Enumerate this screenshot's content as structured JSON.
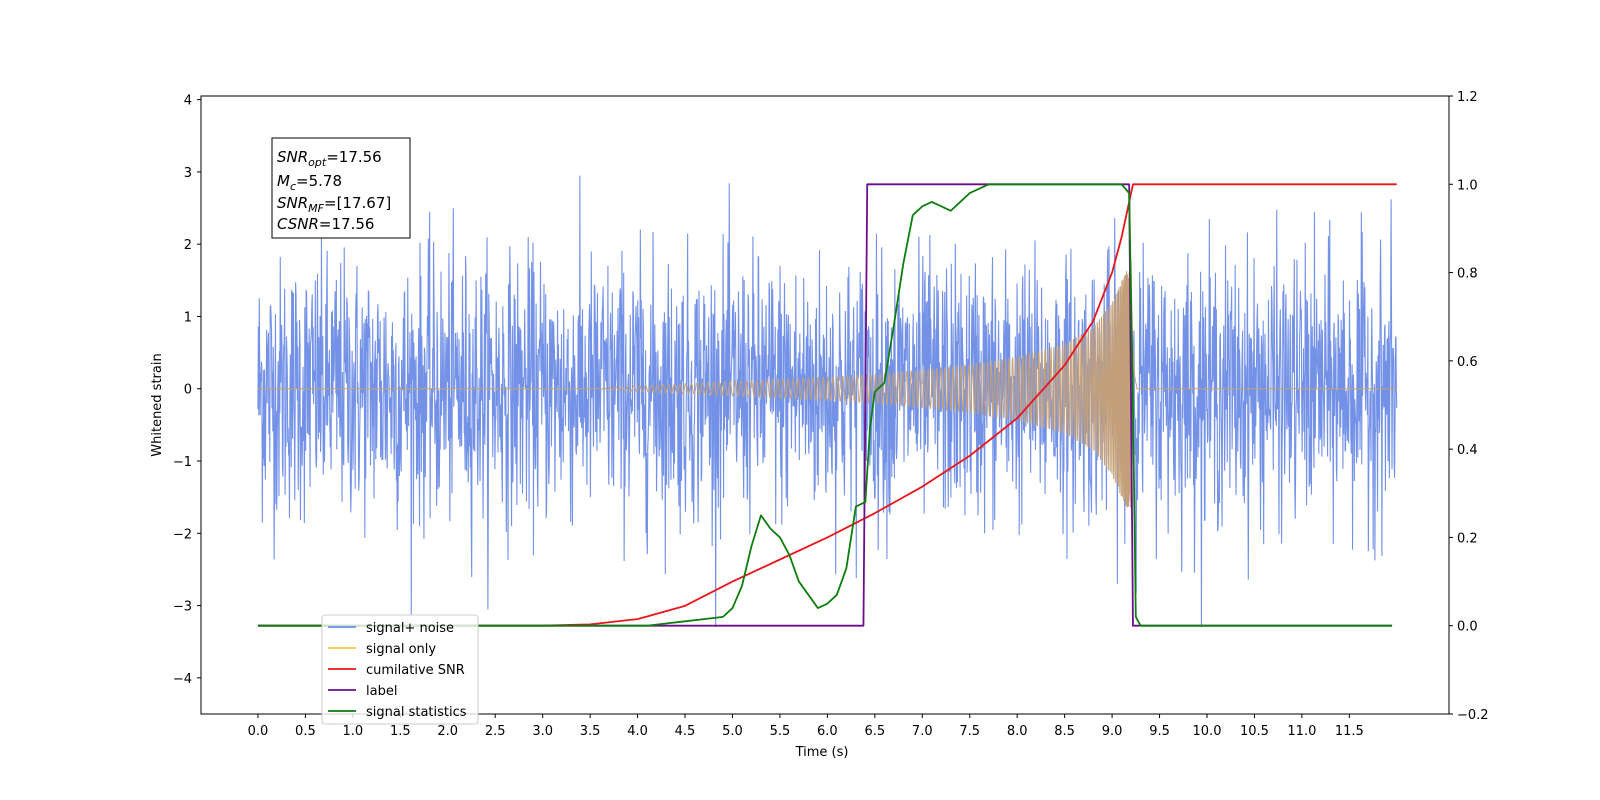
{
  "chart_data": {
    "type": "line",
    "xlabel": "Time (s)",
    "ylabel": "Whitened strain",
    "xlim": [
      -0.6,
      12.55
    ],
    "ylim": [
      -4.5,
      4.05
    ],
    "y2lim": [
      -0.2,
      1.2
    ],
    "x_ticks": [
      0.0,
      0.5,
      1.0,
      1.5,
      2.0,
      2.5,
      3.0,
      3.5,
      4.0,
      4.5,
      5.0,
      5.5,
      6.0,
      6.5,
      7.0,
      7.5,
      8.0,
      8.5,
      9.0,
      9.5,
      10.0,
      10.5,
      11.0,
      11.5
    ],
    "x_tick_labels": [
      "0.0",
      "0.5",
      "1.0",
      "1.5",
      "2.0",
      "2.5",
      "3.0",
      "3.5",
      "4.0",
      "4.5",
      "5.0",
      "5.5",
      "6.0",
      "6.5",
      "7.0",
      "7.5",
      "8.0",
      "8.5",
      "9.0",
      "9.5",
      "10.0",
      "10.5",
      "11.0",
      "11.5"
    ],
    "y_ticks": [
      4,
      3,
      2,
      1,
      0,
      -1,
      -2,
      -3,
      -4
    ],
    "y_tick_labels": [
      "4",
      "3",
      "2",
      "1",
      "0",
      "−1",
      "−2",
      "−3",
      "−4"
    ],
    "y2_ticks": [
      1.2,
      1.0,
      0.8,
      0.6,
      0.4,
      0.2,
      0.0,
      -0.2
    ],
    "y2_tick_labels": [
      "1.2",
      "1.0",
      "0.8",
      "0.6",
      "0.4",
      "0.2",
      "0.0",
      "−0.2"
    ],
    "legend_position": "lower-left",
    "grid": false,
    "annotation": {
      "lines": [
        {
          "base": "SNR",
          "sub": "opt",
          "rest": "=17.56"
        },
        {
          "base": "M",
          "sub": "c",
          "rest": "=5.78"
        },
        {
          "base": "SNR",
          "sub": "MF",
          "rest": "=[17.67]"
        },
        {
          "base": "CSNR",
          "sub": "",
          "rest": "=17.56"
        }
      ]
    },
    "series": [
      {
        "name": "signal+ noise",
        "color": "#6b8ce6",
        "axis": "left",
        "kind": "noise",
        "x_range": [
          0.0,
          12.0
        ],
        "noise_sd": 0.9,
        "envelope_max": [
          -3.3,
          3.7
        ]
      },
      {
        "name": "signal only",
        "color": "#c4a07a",
        "axis": "left",
        "kind": "chirp",
        "x_range": [
          0.0,
          12.0
        ],
        "merger_time": 9.2,
        "envelope": [
          [
            3.5,
            0.005
          ],
          [
            4.0,
            0.04
          ],
          [
            4.5,
            0.07
          ],
          [
            5.0,
            0.1
          ],
          [
            5.5,
            0.13
          ],
          [
            6.0,
            0.16
          ],
          [
            6.5,
            0.2
          ],
          [
            7.0,
            0.26
          ],
          [
            7.5,
            0.33
          ],
          [
            8.0,
            0.44
          ],
          [
            8.5,
            0.62
          ],
          [
            8.8,
            0.85
          ],
          [
            9.0,
            1.2
          ],
          [
            9.1,
            1.5
          ],
          [
            9.2,
            1.75
          ]
        ]
      },
      {
        "name": "cumilative SNR",
        "color": "#e8161a",
        "axis": "right",
        "x": [
          0.0,
          3.0,
          3.5,
          4.0,
          4.5,
          5.0,
          5.5,
          6.0,
          6.5,
          7.0,
          7.5,
          8.0,
          8.5,
          8.8,
          9.0,
          9.1,
          9.18,
          9.22,
          9.3,
          12.0
        ],
        "y": [
          0.0,
          0.0,
          0.003,
          0.015,
          0.045,
          0.1,
          0.15,
          0.2,
          0.255,
          0.315,
          0.385,
          0.47,
          0.59,
          0.69,
          0.8,
          0.88,
          0.96,
          1.0,
          1.0,
          1.0
        ]
      },
      {
        "name": "label",
        "color": "#6a0f8a",
        "axis": "right",
        "x": [
          0.0,
          6.38,
          6.42,
          9.18,
          9.22,
          11.95
        ],
        "y": [
          0.0,
          0.0,
          1.0,
          1.0,
          0.0,
          0.0
        ]
      },
      {
        "name": "signal statistics",
        "color": "#0d7d0d",
        "axis": "right",
        "x": [
          0.0,
          4.1,
          4.3,
          4.5,
          4.7,
          4.9,
          5.0,
          5.1,
          5.2,
          5.3,
          5.4,
          5.5,
          5.6,
          5.7,
          5.8,
          5.9,
          6.0,
          6.1,
          6.2,
          6.3,
          6.4,
          6.45,
          6.5,
          6.6,
          6.7,
          6.8,
          6.9,
          7.0,
          7.1,
          7.2,
          7.3,
          7.4,
          7.5,
          7.6,
          7.7,
          7.8,
          8.0,
          9.0,
          9.1,
          9.18,
          9.22,
          9.25,
          9.3,
          11.95
        ],
        "y": [
          0.0,
          0.0,
          0.005,
          0.01,
          0.015,
          0.02,
          0.04,
          0.09,
          0.18,
          0.25,
          0.22,
          0.2,
          0.16,
          0.1,
          0.07,
          0.04,
          0.05,
          0.07,
          0.13,
          0.27,
          0.28,
          0.45,
          0.53,
          0.55,
          0.68,
          0.82,
          0.93,
          0.95,
          0.96,
          0.95,
          0.94,
          0.96,
          0.98,
          0.99,
          1.0,
          1.0,
          1.0,
          1.0,
          1.0,
          0.98,
          0.5,
          0.02,
          0.0,
          0.0
        ]
      }
    ]
  }
}
